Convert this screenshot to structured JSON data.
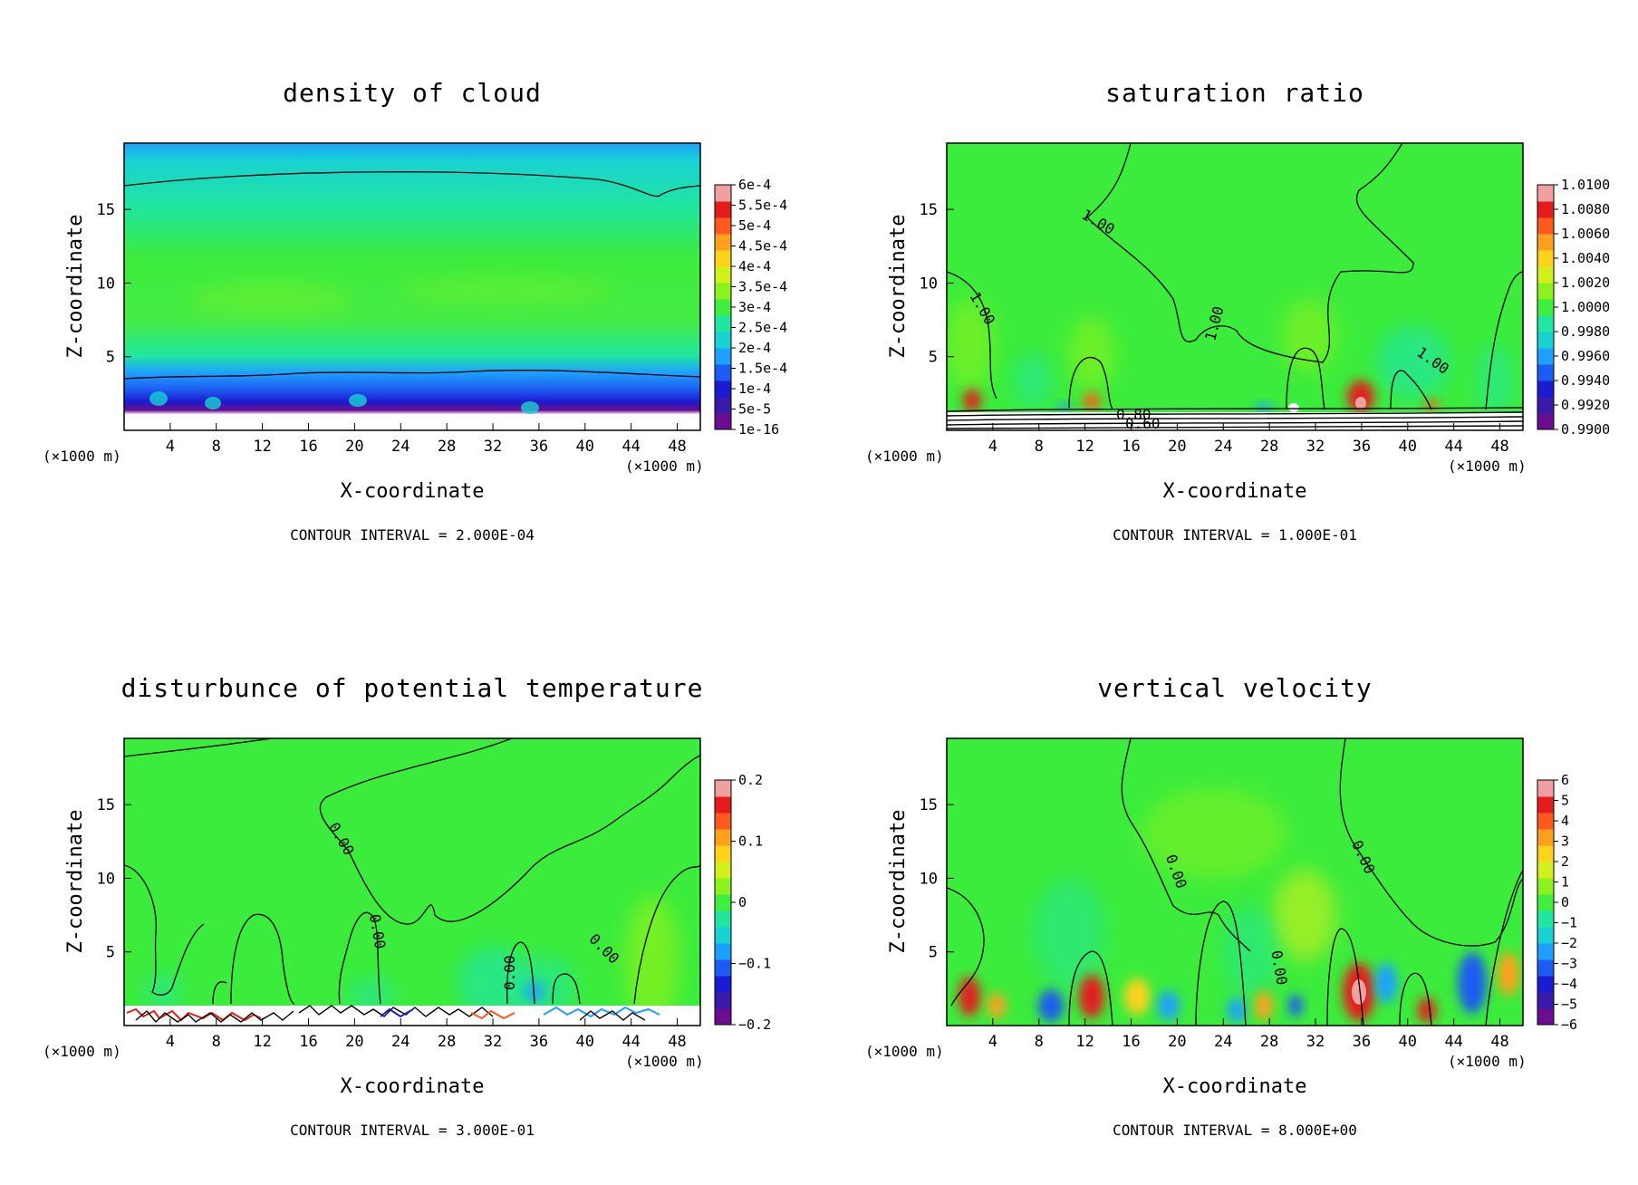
{
  "colors": {
    "scale": [
      "#6a0d91",
      "#3a1aa8",
      "#1b1bcf",
      "#1e5bf0",
      "#1ea0ff",
      "#18d2d2",
      "#20e6a0",
      "#40ee40",
      "#8cf21e",
      "#d2f01e",
      "#ffd21e",
      "#ffa01e",
      "#ff5a1e",
      "#e41c1c",
      "#f0a0a0"
    ],
    "field_green": "#3cec3c",
    "contour": "#000000"
  },
  "chart_data": [
    {
      "type": "heatmap",
      "title": "density of cloud",
      "xlabel": "X-coordinate",
      "ylabel": "Z-coordinate",
      "x_unit": "(×1000 m)",
      "x_ticks": [
        "4",
        "8",
        "12",
        "16",
        "20",
        "24",
        "28",
        "32",
        "36",
        "40",
        "44",
        "48"
      ],
      "y_ticks": [
        "5",
        "10",
        "15"
      ],
      "xlim": [
        0,
        50
      ],
      "ylim": [
        0,
        19.5
      ],
      "colorbar_labels": [
        "1e-16",
        "5e-5",
        "1e-4",
        "1.5e-4",
        "2e-4",
        "2.5e-4",
        "3e-4",
        "3.5e-4",
        "4e-4",
        "4.5e-4",
        "5e-4",
        "5.5e-4",
        "6e-4"
      ],
      "contour_interval": "CONTOUR INTERVAL = 2.000E-04",
      "contour_labels": []
    },
    {
      "type": "heatmap",
      "title": "saturation ratio",
      "xlabel": "X-coordinate",
      "ylabel": "Z-coordinate",
      "x_unit": "(×1000 m)",
      "x_ticks": [
        "4",
        "8",
        "12",
        "16",
        "20",
        "24",
        "28",
        "32",
        "36",
        "40",
        "44",
        "48"
      ],
      "y_ticks": [
        "5",
        "10",
        "15"
      ],
      "xlim": [
        0,
        50
      ],
      "ylim": [
        0,
        19.5
      ],
      "colorbar_labels": [
        "0.9900",
        "0.9920",
        "0.9940",
        "0.9960",
        "0.9980",
        "1.0000",
        "1.0020",
        "1.0040",
        "1.0060",
        "1.0080",
        "1.0100"
      ],
      "contour_interval": "CONTOUR INTERVAL = 1.000E-01",
      "contour_labels": [
        "1.00",
        "1.00",
        "1.00",
        "1.00",
        "0.80",
        "0.60"
      ]
    },
    {
      "type": "heatmap",
      "title": "disturbunce of potential temperature",
      "xlabel": "X-coordinate",
      "ylabel": "Z-coordinate",
      "x_unit": "(×1000 m)",
      "x_ticks": [
        "4",
        "8",
        "12",
        "16",
        "20",
        "24",
        "28",
        "32",
        "36",
        "40",
        "44",
        "48"
      ],
      "y_ticks": [
        "5",
        "10",
        "15"
      ],
      "xlim": [
        0,
        50
      ],
      "ylim": [
        0,
        19.5
      ],
      "colorbar_labels": [
        "−0.2",
        "−0.1",
        "0",
        "0.1",
        "0.2"
      ],
      "contour_interval": "CONTOUR INTERVAL = 3.000E-01",
      "contour_labels": [
        "0.00",
        "0.00",
        "0.00",
        "0.00"
      ]
    },
    {
      "type": "heatmap",
      "title": "vertical velocity",
      "xlabel": "X-coordinate",
      "ylabel": "Z-coordinate",
      "x_unit": "(×1000 m)",
      "x_ticks": [
        "4",
        "8",
        "12",
        "16",
        "20",
        "24",
        "28",
        "32",
        "36",
        "40",
        "44",
        "48"
      ],
      "y_ticks": [
        "5",
        "10",
        "15"
      ],
      "xlim": [
        0,
        50
      ],
      "ylim": [
        0,
        19.5
      ],
      "colorbar_labels": [
        "−6",
        "−5",
        "−4",
        "−3",
        "−2",
        "−1",
        "0",
        "1",
        "2",
        "3",
        "4",
        "5",
        "6"
      ],
      "contour_interval": "CONTOUR INTERVAL = 8.000E+00",
      "contour_labels": [
        "0.00",
        "0.00",
        "0.00"
      ]
    }
  ]
}
